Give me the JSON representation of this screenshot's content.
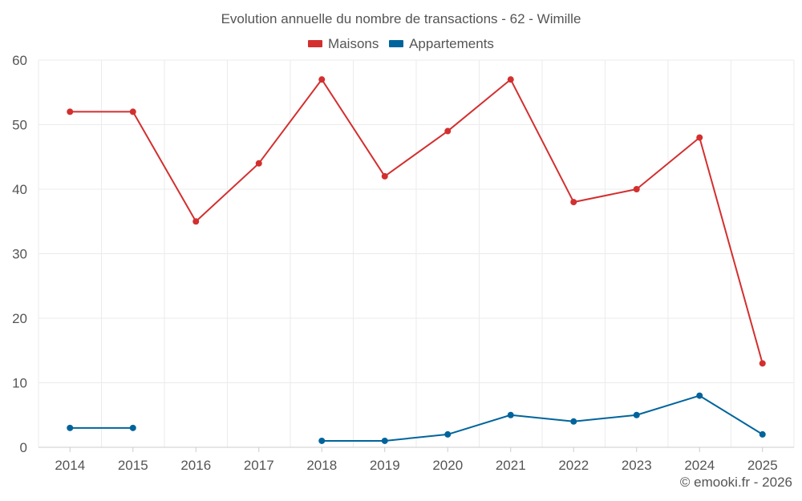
{
  "chart_data": {
    "type": "line",
    "title": "Evolution annuelle du nombre de transactions - 62 - Wimille",
    "xlabel": "",
    "ylabel": "",
    "categories": [
      "2014",
      "2015",
      "2016",
      "2017",
      "2018",
      "2019",
      "2020",
      "2021",
      "2022",
      "2023",
      "2024",
      "2025"
    ],
    "ylim": [
      0,
      60
    ],
    "yticks": [
      0,
      10,
      20,
      30,
      40,
      50,
      60
    ],
    "grid": true,
    "legend_position": "top-center",
    "series": [
      {
        "name": "Maisons",
        "color": "#d32f2f",
        "values": [
          52,
          52,
          35,
          44,
          57,
          42,
          49,
          57,
          38,
          40,
          48,
          13
        ]
      },
      {
        "name": "Appartements",
        "color": "#00649c",
        "values": [
          3,
          3,
          null,
          null,
          1,
          1,
          2,
          5,
          4,
          5,
          8,
          2
        ]
      }
    ],
    "credit": "© emooki.fr - 2026"
  }
}
